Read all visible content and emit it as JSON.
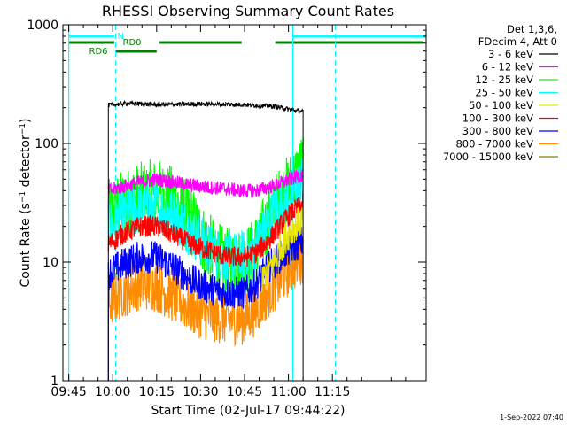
{
  "chart_data": {
    "type": "line",
    "title": "RHESSI Observing Summary Count Rates",
    "xlabel": "Start Time (02-Jul-17 09:44:22)",
    "ylabel": "Count Rate (s⁻¹ detector⁻¹)",
    "yscale": "log",
    "ylim": [
      1,
      1000
    ],
    "xlim_minutes": [
      -2,
      122
    ],
    "x_ticks": [
      {
        "t": 0,
        "label": "09:45"
      },
      {
        "t": 15,
        "label": "10:00"
      },
      {
        "t": 30,
        "label": "10:15"
      },
      {
        "t": 45,
        "label": "10:30"
      },
      {
        "t": 60,
        "label": "10:45"
      },
      {
        "t": 75,
        "label": "11:00"
      },
      {
        "t": 90,
        "label": "11:15"
      }
    ],
    "y_ticks": [
      {
        "v": 1,
        "label": "1"
      },
      {
        "v": 10,
        "label": "10"
      },
      {
        "v": 100,
        "label": "100"
      },
      {
        "v": 1000,
        "label": "1000"
      }
    ],
    "legend_header": [
      "Det 1,3,6,",
      "FDecim 4, Att 0"
    ],
    "series": [
      {
        "name": "3 - 6 keV",
        "color": "#000000",
        "points": [
          [
            13.5,
            210
          ],
          [
            20,
            218
          ],
          [
            30,
            212
          ],
          [
            45,
            215
          ],
          [
            60,
            212
          ],
          [
            70,
            205
          ],
          [
            76,
            192
          ],
          [
            80,
            185
          ]
        ]
      },
      {
        "name": "6 - 12 keV",
        "color": "#ff00ff",
        "points": [
          [
            13.5,
            40
          ],
          [
            18,
            43
          ],
          [
            24,
            47
          ],
          [
            30,
            50
          ],
          [
            38,
            46
          ],
          [
            46,
            43
          ],
          [
            52,
            42
          ],
          [
            58,
            40
          ],
          [
            64,
            40
          ],
          [
            70,
            44
          ],
          [
            76,
            50
          ],
          [
            80,
            55
          ]
        ]
      },
      {
        "name": "12 - 25 keV",
        "color": "#00ff00",
        "points": [
          [
            13.5,
            25
          ],
          [
            18,
            30
          ],
          [
            24,
            35
          ],
          [
            30,
            38
          ],
          [
            36,
            32
          ],
          [
            42,
            22
          ],
          [
            48,
            13
          ],
          [
            53,
            10
          ],
          [
            58,
            9.5
          ],
          [
            62,
            11
          ],
          [
            66,
            17
          ],
          [
            71,
            30
          ],
          [
            76,
            45
          ],
          [
            80,
            65
          ]
        ]
      },
      {
        "name": "25 - 50 keV",
        "color": "#00ffff",
        "points": [
          [
            13.5,
            20
          ],
          [
            18,
            24
          ],
          [
            24,
            28
          ],
          [
            30,
            29
          ],
          [
            36,
            25
          ],
          [
            42,
            18
          ],
          [
            48,
            13
          ],
          [
            53,
            11
          ],
          [
            58,
            11
          ],
          [
            62,
            12
          ],
          [
            66,
            17
          ],
          [
            70,
            26
          ],
          [
            76,
            37
          ],
          [
            80,
            48
          ]
        ]
      },
      {
        "name": "50 - 100 keV",
        "color": "#e6e600",
        "points": [
          [
            66,
            7
          ],
          [
            70,
            10
          ],
          [
            74,
            16
          ],
          [
            77,
            20
          ],
          [
            80,
            23
          ]
        ]
      },
      {
        "name": "100 - 300 keV",
        "color": "#ff0000",
        "points": [
          [
            13.5,
            14
          ],
          [
            18,
            17
          ],
          [
            24,
            20
          ],
          [
            30,
            20
          ],
          [
            36,
            17
          ],
          [
            42,
            14
          ],
          [
            48,
            12.5
          ],
          [
            54,
            11
          ],
          [
            60,
            11
          ],
          [
            64,
            12
          ],
          [
            68,
            15
          ],
          [
            72,
            20
          ],
          [
            76,
            26
          ],
          [
            80,
            31
          ]
        ]
      },
      {
        "name": "300 - 800 keV",
        "color": "#0000ff",
        "points": [
          [
            13.5,
            8
          ],
          [
            18,
            9.5
          ],
          [
            24,
            11
          ],
          [
            30,
            11
          ],
          [
            36,
            9
          ],
          [
            42,
            7
          ],
          [
            48,
            6
          ],
          [
            54,
            5.5
          ],
          [
            60,
            5.5
          ],
          [
            64,
            6.5
          ],
          [
            68,
            9
          ],
          [
            72,
            11
          ],
          [
            76,
            13
          ],
          [
            80,
            15
          ]
        ]
      },
      {
        "name": "800 - 7000 keV",
        "color": "#ff8c00",
        "points": [
          [
            13.5,
            4.5
          ],
          [
            18,
            5.5
          ],
          [
            24,
            6.5
          ],
          [
            30,
            6.3
          ],
          [
            36,
            5
          ],
          [
            42,
            4
          ],
          [
            48,
            3.5
          ],
          [
            54,
            3.3
          ],
          [
            60,
            3.3
          ],
          [
            64,
            4
          ],
          [
            68,
            5.5
          ],
          [
            72,
            7
          ],
          [
            76,
            9
          ],
          [
            80,
            11
          ]
        ]
      },
      {
        "name": "7000 - 15000 keV",
        "color": "#808000",
        "points": []
      }
    ],
    "flags": {
      "N": {
        "label": "N",
        "color": "#00ffff",
        "segments": [
          [
            0,
            15.5
          ],
          [
            76.5,
            122
          ]
        ]
      },
      "RD0": {
        "label": "RD0",
        "color": "#008000",
        "segments": [
          [
            0,
            15.5
          ],
          [
            31,
            59
          ],
          [
            70.5,
            121
          ]
        ]
      },
      "RD6": {
        "label": "RD6",
        "color": "#008000",
        "segments": [
          [
            16,
            30
          ]
        ]
      }
    },
    "vlines_solid": [
      0,
      76.5
    ],
    "vlines_dashed": [
      16,
      91
    ]
  },
  "footer": {
    "timestamp": "1-Sep-2022 07:40"
  }
}
